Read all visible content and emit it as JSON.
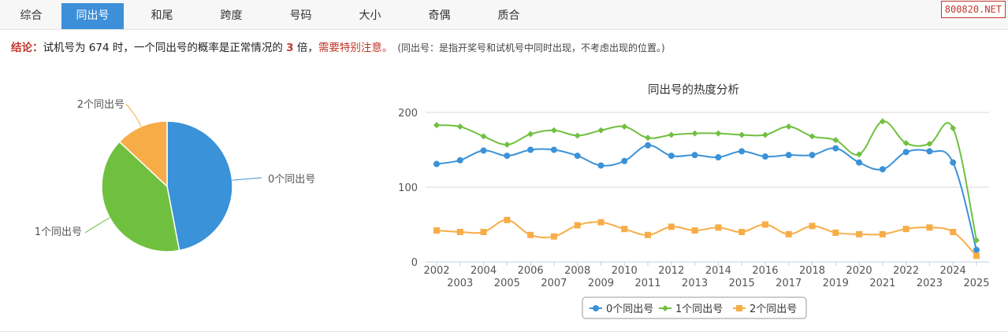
{
  "tabs": [
    {
      "label": "综合",
      "active": false
    },
    {
      "label": "同出号",
      "active": true
    },
    {
      "label": "和尾",
      "active": false
    },
    {
      "label": "跨度",
      "active": false
    },
    {
      "label": "号码",
      "active": false
    },
    {
      "label": "大小",
      "active": false
    },
    {
      "label": "奇偶",
      "active": false
    },
    {
      "label": "质合",
      "active": false
    }
  ],
  "watermark": "800820.NET",
  "conclusion": {
    "label": "结论：",
    "text1": "试机号为 674 时，一个同出号的概率是正常情况的 ",
    "multiple": "3",
    "text2": " 倍，",
    "warning": "需要特别注意。",
    "note": "(同出号：是指开奖号和试机号中同时出现，不考虑出现的位置。)"
  },
  "colors": {
    "accent": "#3d8fd9",
    "series0": "#3a92d8",
    "series1": "#70c040",
    "series2": "#f7ad47",
    "warning": "#c0392b"
  },
  "chart_data": [
    {
      "type": "pie",
      "labels": [
        "0个同出号",
        "1个同出号",
        "2个同出号"
      ],
      "values": [
        47,
        40,
        13
      ]
    },
    {
      "type": "line",
      "title": "同出号的热度分析",
      "x": [
        "2002",
        "2003",
        "2004",
        "2005",
        "2006",
        "2007",
        "2008",
        "2009",
        "2010",
        "2011",
        "2012",
        "2013",
        "2014",
        "2015",
        "2016",
        "2017",
        "2018",
        "2019",
        "2020",
        "2021",
        "2022",
        "2023",
        "2024",
        "2025"
      ],
      "ylim": [
        0,
        200
      ],
      "yticks": [
        0,
        100,
        200
      ],
      "grid": true,
      "legend": "bottom",
      "series": [
        {
          "name": "0个同出号",
          "values": [
            131,
            136,
            149,
            142,
            150,
            150,
            142,
            129,
            135,
            156,
            142,
            143,
            140,
            148,
            141,
            143,
            143,
            152,
            133,
            124,
            147,
            148,
            133,
            16
          ]
        },
        {
          "name": "1个同出号",
          "values": [
            183,
            181,
            168,
            157,
            171,
            176,
            169,
            176,
            181,
            166,
            170,
            172,
            172,
            170,
            170,
            181,
            168,
            163,
            144,
            188,
            159,
            158,
            179,
            29
          ]
        },
        {
          "name": "2个同出号",
          "values": [
            42,
            40,
            40,
            56,
            36,
            34,
            49,
            53,
            44,
            36,
            47,
            42,
            46,
            40,
            50,
            37,
            48,
            39,
            37,
            37,
            44,
            46,
            40,
            8
          ]
        }
      ]
    }
  ]
}
